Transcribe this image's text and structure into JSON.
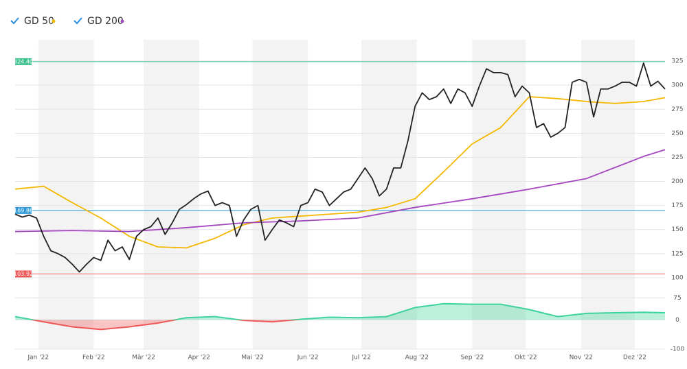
{
  "chart_data": {
    "type": "line",
    "legend": "top-left",
    "grid": true,
    "xlim": [
      -12,
      352
    ],
    "xticks": [
      {
        "value": 1,
        "label": "Jan '22"
      },
      {
        "value": 32,
        "label": "Feb '22"
      },
      {
        "value": 60,
        "label": "Mär '22"
      },
      {
        "value": 91,
        "label": "Apr '22"
      },
      {
        "value": 121,
        "label": "Mai '22"
      },
      {
        "value": 152,
        "label": "Jun '22"
      },
      {
        "value": 182,
        "label": "Jul '22"
      },
      {
        "value": 213,
        "label": "Aug '22"
      },
      {
        "value": 244,
        "label": "Sep '22"
      },
      {
        "value": 274,
        "label": "Okt '22"
      },
      {
        "value": 305,
        "label": "Nov '22"
      },
      {
        "value": 335,
        "label": "Dez '22"
      }
    ],
    "ylim": [
      80,
      340
    ],
    "yticks": [
      100,
      125,
      150,
      175,
      200,
      225,
      250,
      275,
      300,
      325
    ],
    "price": {
      "color": "#222222",
      "x": [
        -12,
        -8,
        -4,
        0,
        4,
        8,
        12,
        16,
        20,
        24,
        28,
        32,
        36,
        40,
        44,
        48,
        52,
        56,
        60,
        64,
        68,
        72,
        76,
        80,
        84,
        88,
        92,
        96,
        100,
        104,
        108,
        112,
        116,
        120,
        124,
        128,
        132,
        136,
        140,
        144,
        148,
        152,
        156,
        160,
        164,
        168,
        172,
        176,
        180,
        184,
        188,
        192,
        196,
        200,
        204,
        208,
        212,
        216,
        220,
        224,
        228,
        232,
        236,
        240,
        244,
        248,
        252,
        256,
        260,
        264,
        268,
        272,
        276,
        280,
        284,
        288,
        292,
        296,
        300,
        304,
        308,
        312,
        316,
        320,
        324,
        328,
        332,
        336,
        340,
        344,
        348,
        352
      ],
      "values": [
        166,
        163,
        165,
        162,
        143,
        128,
        125,
        121,
        114,
        106,
        114,
        121,
        118,
        139,
        128,
        132,
        119,
        143,
        150,
        153,
        162,
        145,
        157,
        171,
        176,
        182,
        187,
        190,
        175,
        178,
        175,
        143,
        160,
        171,
        175,
        139,
        150,
        160,
        157,
        153,
        175,
        178,
        192,
        189,
        175,
        182,
        189,
        192,
        203,
        214,
        203,
        185,
        192,
        214,
        214,
        242,
        278,
        292,
        285,
        288,
        296,
        281,
        296,
        292,
        278,
        299,
        317,
        313,
        313,
        311,
        288,
        299,
        292,
        256,
        260,
        246,
        250,
        256,
        303,
        306,
        303,
        267,
        296,
        296,
        299,
        303,
        303,
        299,
        323,
        299,
        304,
        296
      ]
    },
    "series": [
      {
        "name": "GD 50",
        "color": "#f5b800",
        "x": [
          -12,
          4,
          20,
          36,
          52,
          68,
          84,
          100,
          116,
          132,
          148,
          164,
          180,
          196,
          212,
          228,
          244,
          260,
          276,
          292,
          308,
          324,
          340,
          352
        ],
        "values": [
          192,
          195,
          178,
          162,
          143,
          132,
          131,
          141,
          155,
          162,
          164,
          166,
          168,
          173,
          182,
          210,
          239,
          256,
          288,
          286,
          283,
          281,
          283,
          287
        ]
      },
      {
        "name": "GD 200",
        "color": "#a445c0",
        "x": [
          -12,
          20,
          52,
          84,
          116,
          148,
          180,
          212,
          244,
          276,
          308,
          340,
          352
        ],
        "values": [
          148,
          149,
          148,
          152,
          157,
          159,
          162,
          173,
          182,
          192,
          203,
          226,
          233
        ]
      }
    ],
    "reference_lines": [
      {
        "value": 324.4,
        "label": "324.40",
        "color": "#3dc28f"
      },
      {
        "value": 169.86,
        "label": "169.86",
        "color": "#2b9ad6"
      },
      {
        "value": 103.92,
        "label": "103.92",
        "color": "#ee5a5a"
      }
    ],
    "oscillator": {
      "ylim": [
        -100,
        85
      ],
      "yticks": [
        -100,
        0,
        75
      ],
      "positive_color": "#3dd39b",
      "negative_color": "#ef5757",
      "x": [
        -12,
        4,
        20,
        36,
        52,
        68,
        84,
        100,
        116,
        132,
        148,
        164,
        180,
        196,
        212,
        228,
        244,
        260,
        276,
        292,
        308,
        324,
        340,
        352
      ],
      "values": [
        11,
        -7,
        -24,
        -33,
        -24,
        -11,
        7,
        11,
        -2,
        -7,
        2,
        9,
        7,
        11,
        42,
        55,
        53,
        53,
        35,
        11,
        22,
        24,
        26,
        24
      ]
    }
  }
}
